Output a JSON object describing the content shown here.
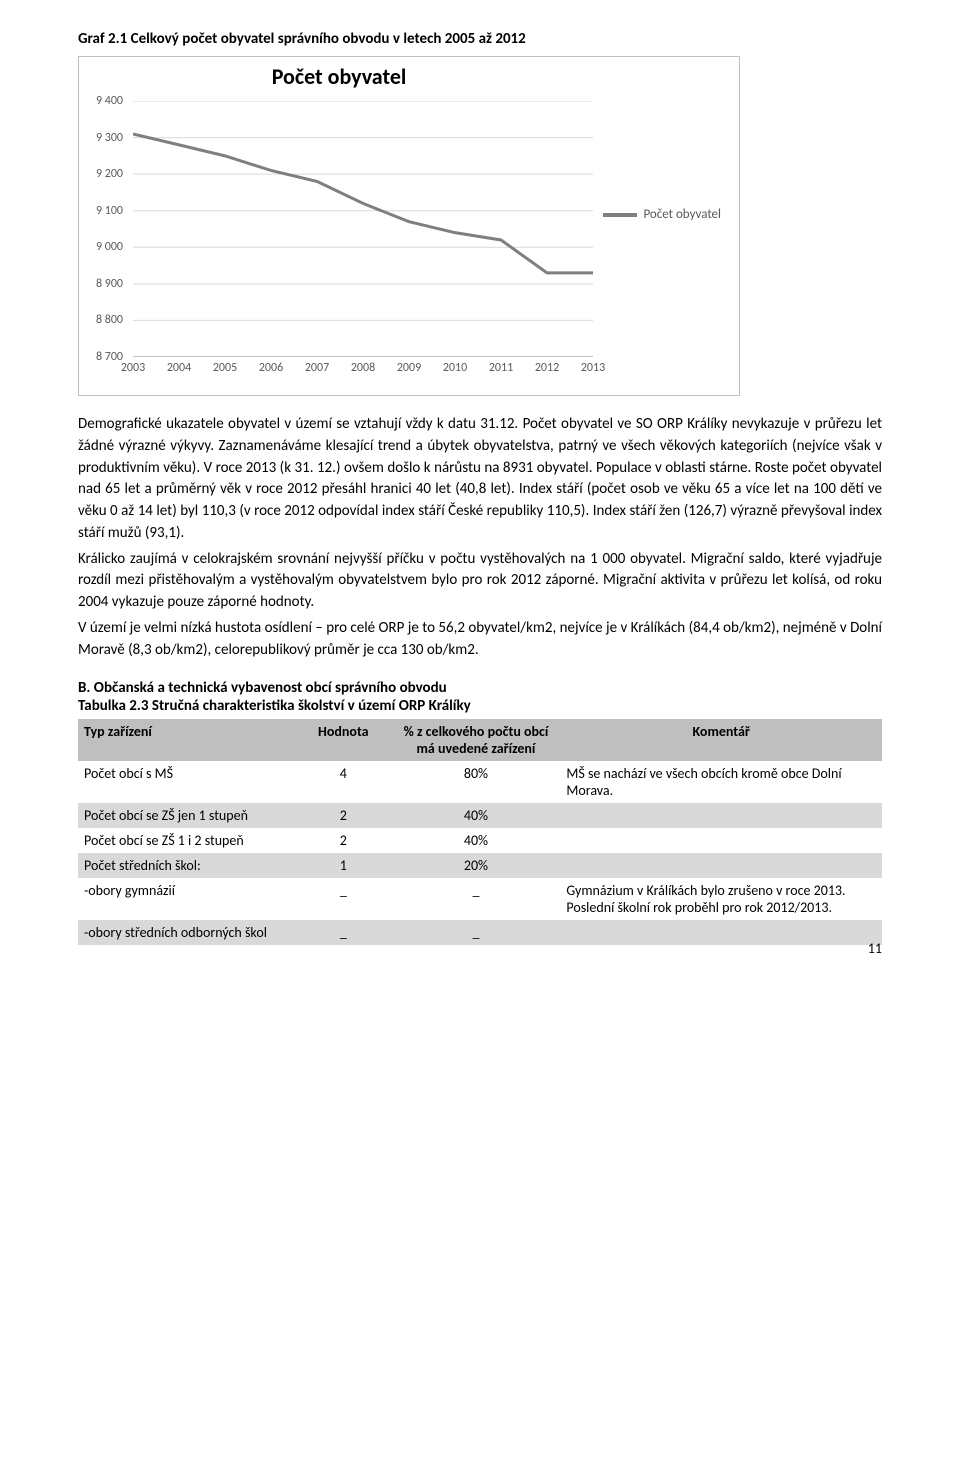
{
  "heading": "Graf 2.1 Celkový počet obyvatel správního obvodu v letech 2005 až 2012",
  "chart": {
    "type": "line",
    "title": "Počet obyvatel",
    "title_fontsize": 22,
    "legend_label": "Počet obyvatel",
    "line_color": "#7f7f7f",
    "line_width": 3,
    "grid_color": "#d9d9d9",
    "axis_color": "#808080",
    "background_color": "#ffffff",
    "border_color": "#bfbfbf",
    "label_color": "#595959",
    "label_fontsize": 12,
    "xlim": [
      2003,
      2013
    ],
    "ylim": [
      8700,
      9400
    ],
    "ytick_step": 100,
    "yticks": [
      8700,
      8800,
      8900,
      9000,
      9100,
      9200,
      9300,
      9400
    ],
    "xticks": [
      2003,
      2004,
      2005,
      2006,
      2007,
      2008,
      2009,
      2010,
      2011,
      2012,
      2013
    ],
    "x": [
      2003,
      2004,
      2005,
      2006,
      2007,
      2008,
      2009,
      2010,
      2011,
      2012,
      2013
    ],
    "y": [
      9310,
      9280,
      9250,
      9210,
      9180,
      9120,
      9070,
      9040,
      9020,
      8930,
      8930
    ]
  },
  "paragraphs": {
    "p1": "Demografické ukazatele obyvatel v území se vztahují vždy k datu 31.12. Počet obyvatel ve SO ORP Králíky nevykazuje v průřezu let žádné výrazné výkyvy. Zaznamenáváme klesající trend a úbytek obyvatelstva, patrný ve všech věkových kategoriích (nejvíce však v produktivním věku). V roce 2013 (k 31. 12.) ovšem došlo k nárůstu na 8931 obyvatel. Populace v oblasti stárne. Roste počet obyvatel nad 65 let a průměrný věk v roce 2012 přesáhl hranici 40 let (40,8 let). Index stáří (počet osob ve věku 65 a více let na 100 dětí ve věku 0 až 14 let) byl 110,3 (v roce 2012 odpovídal index stáří České republiky 110,5). Index stáří žen (126,7) výrazně převyšoval index stáří mužů (93,1).",
    "p2": "Králicko zaujímá v celokrajském srovnání nejvyšší příčku v počtu vystěhovalých na 1 000 obyvatel. Migrační saldo, které vyjadřuje rozdíl mezi přistěhovalým a vystěhovalým obyvatelstvem bylo pro rok 2012 záporné. Migrační aktivita v průřezu let kolísá, od roku 2004 vykazuje pouze záporné hodnoty.",
    "p3": "V území je velmi nízká hustota osídlení – pro celé ORP je to 56,2 obyvatel/km2, nejvíce je v Králíkách (84,4 ob/km2), nejméně v Dolní Moravě (8,3 ob/km2), celorepublikový průměr je cca 130 ob/km2."
  },
  "section_b": {
    "title": "B.   Občanská a technická vybavenost obcí správního obvodu",
    "table_title": "Tabulka 2.3 Stručná charakteristika školství v území ORP Králíky"
  },
  "table": {
    "header_bg": "#bfbfbf",
    "row_even_bg": "#d9d9d9",
    "row_odd_bg": "#ffffff",
    "col_widths": [
      "27%",
      "12%",
      "21%",
      "40%"
    ],
    "columns": [
      "Typ zařízení",
      "Hodnota",
      "% z celkového počtu obcí má uvedené zařízení",
      "Komentář"
    ],
    "rows": [
      {
        "c0": "Počet obcí s MŠ",
        "c1": "4",
        "c2": "80%",
        "c3": "MŠ se nachází ve všech obcích kromě obce Dolní Morava.",
        "parity": "odd"
      },
      {
        "c0": "Počet obcí se ZŠ jen 1 stupeň",
        "c1": "2",
        "c2": "40%",
        "c3": "",
        "parity": "even"
      },
      {
        "c0": "Počet obcí se ZŠ 1 i 2 stupeň",
        "c1": "2",
        "c2": "40%",
        "c3": "",
        "parity": "odd"
      },
      {
        "c0": "Počet středních škol:",
        "c1": "1",
        "c2": "20%",
        "c3": "",
        "parity": "even"
      },
      {
        "c0": "-obory gymnázií",
        "c1": "_",
        "c2": "_",
        "c3": "Gymnázium v Králíkách bylo zrušeno v roce 2013. Poslední školní rok proběhl pro rok 2012/2013.",
        "parity": "odd"
      },
      {
        "c0": "-obory středních odborných škol",
        "c1": "_",
        "c2": "_",
        "c3": "",
        "parity": "even"
      }
    ]
  },
  "page_number": "11"
}
